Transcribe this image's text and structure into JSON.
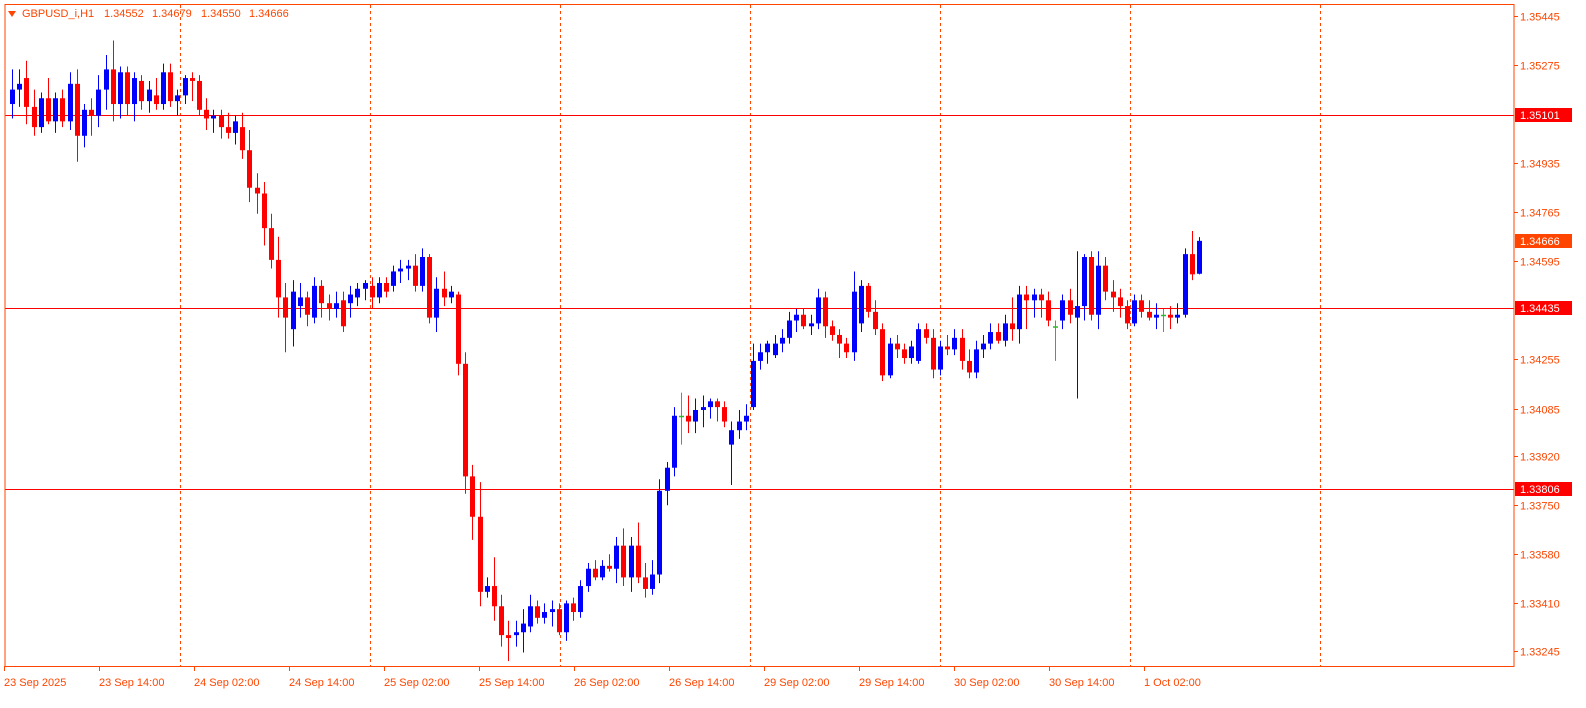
{
  "chart_data": {
    "type": "candlestick",
    "symbol_label": "GBPUSD_i,H1",
    "ohlc_readout": [
      "1.34552",
      "1.34679",
      "1.34550",
      "1.34666"
    ],
    "y_ticks": [
      "1.35445",
      "1.35275",
      "1.34935",
      "1.34765",
      "1.34595",
      "1.34255",
      "1.34085",
      "1.33920",
      "1.33750",
      "1.33580",
      "1.33410",
      "1.33245"
    ],
    "x_ticks": [
      "23 Sep 2025",
      "23 Sep 14:00",
      "24 Sep 02:00",
      "24 Sep 14:00",
      "25 Sep 02:00",
      "25 Sep 14:00",
      "26 Sep 02:00",
      "26 Sep 14:00",
      "29 Sep 02:00",
      "29 Sep 14:00",
      "30 Sep 02:00",
      "30 Sep 14:00",
      "1 Oct 02:00"
    ],
    "ylim": [
      1.3318,
      1.3548
    ],
    "grid": {
      "vertical": true,
      "horizontal": false,
      "style": "dashed"
    },
    "levels": [
      {
        "label": "1.35101",
        "price": 1.35101
      },
      {
        "label": "1.34435",
        "price": 1.34435
      },
      {
        "label": "1.33806",
        "price": 1.33806
      }
    ],
    "current_price": {
      "label": "1.34666",
      "price": 1.34666
    },
    "colors": {
      "bull": "#0000ff",
      "bear": "#ff0000",
      "doji": "#2eb82e",
      "line": "#ff0000",
      "grid": "#ff4500",
      "axis": "#ff4500",
      "text": "#ff4500"
    },
    "candles": [
      {
        "o": 1.3514,
        "h": 1.3526,
        "l": 1.3509,
        "c": 1.3519
      },
      {
        "o": 1.3519,
        "h": 1.3526,
        "l": 1.3513,
        "c": 1.3521
      },
      {
        "o": 1.3523,
        "h": 1.3529,
        "l": 1.3507,
        "c": 1.3513
      },
      {
        "o": 1.3513,
        "h": 1.3519,
        "l": 1.3503,
        "c": 1.3506
      },
      {
        "o": 1.3506,
        "h": 1.3518,
        "l": 1.3504,
        "c": 1.3516
      },
      {
        "o": 1.3516,
        "h": 1.3523,
        "l": 1.3507,
        "c": 1.3508
      },
      {
        "o": 1.3508,
        "h": 1.3518,
        "l": 1.3504,
        "c": 1.3516
      },
      {
        "o": 1.3516,
        "h": 1.3519,
        "l": 1.3506,
        "c": 1.3508
      },
      {
        "o": 1.3508,
        "h": 1.3525,
        "l": 1.3505,
        "c": 1.3521
      },
      {
        "o": 1.3521,
        "h": 1.3526,
        "l": 1.3494,
        "c": 1.3503
      },
      {
        "o": 1.3503,
        "h": 1.3514,
        "l": 1.3499,
        "c": 1.3512
      },
      {
        "o": 1.3512,
        "h": 1.3516,
        "l": 1.3503,
        "c": 1.351
      },
      {
        "o": 1.351,
        "h": 1.3524,
        "l": 1.3506,
        "c": 1.3519
      },
      {
        "o": 1.3519,
        "h": 1.3531,
        "l": 1.3512,
        "c": 1.3526
      },
      {
        "o": 1.3526,
        "h": 1.3536,
        "l": 1.3508,
        "c": 1.3514
      },
      {
        "o": 1.3514,
        "h": 1.3527,
        "l": 1.3509,
        "c": 1.3525
      },
      {
        "o": 1.3525,
        "h": 1.3527,
        "l": 1.351,
        "c": 1.3514
      },
      {
        "o": 1.3514,
        "h": 1.3525,
        "l": 1.3508,
        "c": 1.3523
      },
      {
        "o": 1.3522,
        "h": 1.3524,
        "l": 1.3512,
        "c": 1.3515
      },
      {
        "o": 1.3515,
        "h": 1.3522,
        "l": 1.3511,
        "c": 1.3519
      },
      {
        "o": 1.3517,
        "h": 1.3523,
        "l": 1.3512,
        "c": 1.3514
      },
      {
        "o": 1.3514,
        "h": 1.3528,
        "l": 1.3512,
        "c": 1.3525
      },
      {
        "o": 1.3525,
        "h": 1.3528,
        "l": 1.3513,
        "c": 1.3515
      },
      {
        "o": 1.3515,
        "h": 1.3519,
        "l": 1.351,
        "c": 1.3517
      },
      {
        "o": 1.3517,
        "h": 1.3524,
        "l": 1.3514,
        "c": 1.3523
      },
      {
        "o": 1.3523,
        "h": 1.3525,
        "l": 1.3515,
        "c": 1.3522
      },
      {
        "o": 1.3522,
        "h": 1.3524,
        "l": 1.351,
        "c": 1.3512
      },
      {
        "o": 1.3512,
        "h": 1.3516,
        "l": 1.3505,
        "c": 1.3509
      },
      {
        "o": 1.3509,
        "h": 1.3512,
        "l": 1.3504,
        "c": 1.351
      },
      {
        "o": 1.351,
        "h": 1.3512,
        "l": 1.3502,
        "c": 1.3506
      },
      {
        "o": 1.3506,
        "h": 1.3511,
        "l": 1.3502,
        "c": 1.3504
      },
      {
        "o": 1.3504,
        "h": 1.351,
        "l": 1.35,
        "c": 1.3508
      },
      {
        "o": 1.3506,
        "h": 1.3511,
        "l": 1.3495,
        "c": 1.3498
      },
      {
        "o": 1.3498,
        "h": 1.3505,
        "l": 1.348,
        "c": 1.3485
      },
      {
        "o": 1.3485,
        "h": 1.349,
        "l": 1.3476,
        "c": 1.3483
      },
      {
        "o": 1.3483,
        "h": 1.3487,
        "l": 1.3465,
        "c": 1.3471
      },
      {
        "o": 1.3471,
        "h": 1.3476,
        "l": 1.3457,
        "c": 1.346
      },
      {
        "o": 1.346,
        "h": 1.3468,
        "l": 1.344,
        "c": 1.3447
      },
      {
        "o": 1.3447,
        "h": 1.3452,
        "l": 1.3428,
        "c": 1.344
      },
      {
        "o": 1.3436,
        "h": 1.3453,
        "l": 1.343,
        "c": 1.3449
      },
      {
        "o": 1.3444,
        "h": 1.3452,
        "l": 1.344,
        "c": 1.3447
      },
      {
        "o": 1.3447,
        "h": 1.3449,
        "l": 1.3437,
        "c": 1.3441
      },
      {
        "o": 1.344,
        "h": 1.3454,
        "l": 1.3438,
        "c": 1.3451
      },
      {
        "o": 1.3451,
        "h": 1.3453,
        "l": 1.344,
        "c": 1.3445
      },
      {
        "o": 1.3445,
        "h": 1.3448,
        "l": 1.3439,
        "c": 1.3443
      },
      {
        "o": 1.3443,
        "h": 1.3449,
        "l": 1.344,
        "c": 1.3445
      },
      {
        "o": 1.3446,
        "h": 1.3449,
        "l": 1.3435,
        "c": 1.3437
      },
      {
        "o": 1.3445,
        "h": 1.3451,
        "l": 1.344,
        "c": 1.3448
      },
      {
        "o": 1.3447,
        "h": 1.3452,
        "l": 1.3444,
        "c": 1.345
      },
      {
        "o": 1.345,
        "h": 1.3453,
        "l": 1.3446,
        "c": 1.3452
      },
      {
        "o": 1.3451,
        "h": 1.3454,
        "l": 1.3443,
        "c": 1.3447
      },
      {
        "o": 1.3447,
        "h": 1.3454,
        "l": 1.3445,
        "c": 1.3452
      },
      {
        "o": 1.3452,
        "h": 1.3454,
        "l": 1.3447,
        "c": 1.3449
      },
      {
        "o": 1.3451,
        "h": 1.3458,
        "l": 1.3449,
        "c": 1.3456
      },
      {
        "o": 1.3456,
        "h": 1.346,
        "l": 1.3452,
        "c": 1.3457
      },
      {
        "o": 1.3457,
        "h": 1.346,
        "l": 1.3453,
        "c": 1.3458
      },
      {
        "o": 1.3458,
        "h": 1.3462,
        "l": 1.3449,
        "c": 1.3451
      },
      {
        "o": 1.3451,
        "h": 1.3464,
        "l": 1.3449,
        "c": 1.3461
      },
      {
        "o": 1.3461,
        "h": 1.3462,
        "l": 1.3438,
        "c": 1.344
      },
      {
        "o": 1.344,
        "h": 1.3454,
        "l": 1.3435,
        "c": 1.345
      },
      {
        "o": 1.345,
        "h": 1.3456,
        "l": 1.3444,
        "c": 1.3447
      },
      {
        "o": 1.3447,
        "h": 1.3451,
        "l": 1.3445,
        "c": 1.3449
      },
      {
        "o": 1.3448,
        "h": 1.3449,
        "l": 1.342,
        "c": 1.3424
      },
      {
        "o": 1.3424,
        "h": 1.3428,
        "l": 1.3379,
        "c": 1.3385
      },
      {
        "o": 1.3385,
        "h": 1.3389,
        "l": 1.3363,
        "c": 1.3371
      },
      {
        "o": 1.3371,
        "h": 1.3383,
        "l": 1.334,
        "c": 1.3345
      },
      {
        "o": 1.3345,
        "h": 1.335,
        "l": 1.3343,
        "c": 1.3347
      },
      {
        "o": 1.3347,
        "h": 1.3357,
        "l": 1.3335,
        "c": 1.334
      },
      {
        "o": 1.334,
        "h": 1.3344,
        "l": 1.3326,
        "c": 1.333
      },
      {
        "o": 1.333,
        "h": 1.3335,
        "l": 1.3321,
        "c": 1.3329
      },
      {
        "o": 1.333,
        "h": 1.3335,
        "l": 1.3326,
        "c": 1.3331
      },
      {
        "o": 1.3331,
        "h": 1.3339,
        "l": 1.3324,
        "c": 1.3334
      },
      {
        "o": 1.3333,
        "h": 1.3344,
        "l": 1.3331,
        "c": 1.334
      },
      {
        "o": 1.334,
        "h": 1.3342,
        "l": 1.3334,
        "c": 1.3336
      },
      {
        "o": 1.3336,
        "h": 1.3341,
        "l": 1.3334,
        "c": 1.3338
      },
      {
        "o": 1.3338,
        "h": 1.3342,
        "l": 1.3333,
        "c": 1.3339
      },
      {
        "o": 1.3339,
        "h": 1.3341,
        "l": 1.333,
        "c": 1.3331
      },
      {
        "o": 1.3331,
        "h": 1.3342,
        "l": 1.3328,
        "c": 1.3341
      },
      {
        "o": 1.3341,
        "h": 1.3343,
        "l": 1.3335,
        "c": 1.3338
      },
      {
        "o": 1.3338,
        "h": 1.3349,
        "l": 1.3336,
        "c": 1.3347
      },
      {
        "o": 1.3347,
        "h": 1.3355,
        "l": 1.3345,
        "c": 1.3353
      },
      {
        "o": 1.3353,
        "h": 1.3356,
        "l": 1.3349,
        "c": 1.335
      },
      {
        "o": 1.335,
        "h": 1.3356,
        "l": 1.3349,
        "c": 1.3354
      },
      {
        "o": 1.3354,
        "h": 1.3358,
        "l": 1.3352,
        "c": 1.3353
      },
      {
        "o": 1.3353,
        "h": 1.3364,
        "l": 1.3348,
        "c": 1.3361
      },
      {
        "o": 1.3361,
        "h": 1.3367,
        "l": 1.3347,
        "c": 1.335
      },
      {
        "o": 1.335,
        "h": 1.3364,
        "l": 1.3345,
        "c": 1.3361
      },
      {
        "o": 1.3361,
        "h": 1.3369,
        "l": 1.3348,
        "c": 1.335
      },
      {
        "o": 1.335,
        "h": 1.3355,
        "l": 1.3343,
        "c": 1.3346
      },
      {
        "o": 1.3346,
        "h": 1.3356,
        "l": 1.3344,
        "c": 1.3351
      },
      {
        "o": 1.3351,
        "h": 1.3384,
        "l": 1.3348,
        "c": 1.338
      },
      {
        "o": 1.338,
        "h": 1.339,
        "l": 1.3375,
        "c": 1.3388
      },
      {
        "o": 1.3388,
        "h": 1.3409,
        "l": 1.3385,
        "c": 1.3406
      },
      {
        "o": 1.3406,
        "h": 1.3414,
        "l": 1.3396,
        "c": 1.3406
      },
      {
        "o": 1.3406,
        "h": 1.3413,
        "l": 1.34,
        "c": 1.3404
      },
      {
        "o": 1.3404,
        "h": 1.3412,
        "l": 1.34,
        "c": 1.3408
      },
      {
        "o": 1.3408,
        "h": 1.3413,
        "l": 1.3402,
        "c": 1.3409
      },
      {
        "o": 1.3409,
        "h": 1.3412,
        "l": 1.3405,
        "c": 1.3411
      },
      {
        "o": 1.3411,
        "h": 1.3412,
        "l": 1.3404,
        "c": 1.3409
      },
      {
        "o": 1.3409,
        "h": 1.3411,
        "l": 1.3402,
        "c": 1.3404
      },
      {
        "o": 1.3396,
        "h": 1.3404,
        "l": 1.3382,
        "c": 1.3401
      },
      {
        "o": 1.3401,
        "h": 1.3408,
        "l": 1.3398,
        "c": 1.3404
      },
      {
        "o": 1.3404,
        "h": 1.341,
        "l": 1.3401,
        "c": 1.3406
      },
      {
        "o": 1.3409,
        "h": 1.3431,
        "l": 1.3408,
        "c": 1.3425
      },
      {
        "o": 1.3425,
        "h": 1.3431,
        "l": 1.3422,
        "c": 1.3428
      },
      {
        "o": 1.3428,
        "h": 1.3432,
        "l": 1.3424,
        "c": 1.3431
      },
      {
        "o": 1.3427,
        "h": 1.3434,
        "l": 1.3426,
        "c": 1.3431
      },
      {
        "o": 1.3431,
        "h": 1.3436,
        "l": 1.3428,
        "c": 1.3433
      },
      {
        "o": 1.3433,
        "h": 1.3442,
        "l": 1.3431,
        "c": 1.3439
      },
      {
        "o": 1.3439,
        "h": 1.3443,
        "l": 1.3435,
        "c": 1.3441
      },
      {
        "o": 1.3441,
        "h": 1.3443,
        "l": 1.3436,
        "c": 1.3437
      },
      {
        "o": 1.3437,
        "h": 1.3441,
        "l": 1.3434,
        "c": 1.3438
      },
      {
        "o": 1.3438,
        "h": 1.345,
        "l": 1.3436,
        "c": 1.3447
      },
      {
        "o": 1.3447,
        "h": 1.3449,
        "l": 1.3433,
        "c": 1.3437
      },
      {
        "o": 1.3437,
        "h": 1.3439,
        "l": 1.3432,
        "c": 1.3434
      },
      {
        "o": 1.3434,
        "h": 1.3436,
        "l": 1.3426,
        "c": 1.3431
      },
      {
        "o": 1.3431,
        "h": 1.3433,
        "l": 1.3426,
        "c": 1.3428
      },
      {
        "o": 1.3428,
        "h": 1.3456,
        "l": 1.3425,
        "c": 1.3449
      },
      {
        "o": 1.3438,
        "h": 1.3453,
        "l": 1.3435,
        "c": 1.3451
      },
      {
        "o": 1.3451,
        "h": 1.3452,
        "l": 1.344,
        "c": 1.3442
      },
      {
        "o": 1.3442,
        "h": 1.3446,
        "l": 1.3434,
        "c": 1.3436
      },
      {
        "o": 1.3436,
        "h": 1.3438,
        "l": 1.3418,
        "c": 1.342
      },
      {
        "o": 1.342,
        "h": 1.3433,
        "l": 1.3419,
        "c": 1.3431
      },
      {
        "o": 1.3431,
        "h": 1.3434,
        "l": 1.3426,
        "c": 1.3429
      },
      {
        "o": 1.3429,
        "h": 1.3431,
        "l": 1.3424,
        "c": 1.3426
      },
      {
        "o": 1.3426,
        "h": 1.3432,
        "l": 1.3424,
        "c": 1.343
      },
      {
        "o": 1.3425,
        "h": 1.3438,
        "l": 1.3424,
        "c": 1.3436
      },
      {
        "o": 1.3436,
        "h": 1.3438,
        "l": 1.3431,
        "c": 1.3433
      },
      {
        "o": 1.3433,
        "h": 1.3436,
        "l": 1.3419,
        "c": 1.3422
      },
      {
        "o": 1.3422,
        "h": 1.3432,
        "l": 1.342,
        "c": 1.343
      },
      {
        "o": 1.343,
        "h": 1.3434,
        "l": 1.3427,
        "c": 1.3429
      },
      {
        "o": 1.3429,
        "h": 1.3436,
        "l": 1.3427,
        "c": 1.3433
      },
      {
        "o": 1.3433,
        "h": 1.3436,
        "l": 1.3422,
        "c": 1.3425
      },
      {
        "o": 1.3425,
        "h": 1.3429,
        "l": 1.3419,
        "c": 1.3421
      },
      {
        "o": 1.3421,
        "h": 1.3432,
        "l": 1.3419,
        "c": 1.3429
      },
      {
        "o": 1.3429,
        "h": 1.3434,
        "l": 1.3426,
        "c": 1.3431
      },
      {
        "o": 1.3431,
        "h": 1.3438,
        "l": 1.3429,
        "c": 1.3435
      },
      {
        "o": 1.3435,
        "h": 1.3438,
        "l": 1.3431,
        "c": 1.3432
      },
      {
        "o": 1.3432,
        "h": 1.3441,
        "l": 1.343,
        "c": 1.3438
      },
      {
        "o": 1.3438,
        "h": 1.3447,
        "l": 1.3432,
        "c": 1.3436
      },
      {
        "o": 1.3436,
        "h": 1.3451,
        "l": 1.3431,
        "c": 1.3448
      },
      {
        "o": 1.3448,
        "h": 1.3451,
        "l": 1.3436,
        "c": 1.3446
      },
      {
        "o": 1.3446,
        "h": 1.345,
        "l": 1.344,
        "c": 1.3448
      },
      {
        "o": 1.3448,
        "h": 1.345,
        "l": 1.344,
        "c": 1.3446
      },
      {
        "o": 1.3446,
        "h": 1.3449,
        "l": 1.3437,
        "c": 1.3439
      },
      {
        "o": 1.3437,
        "h": 1.3439,
        "l": 1.3425,
        "c": 1.3437
      },
      {
        "o": 1.3439,
        "h": 1.3448,
        "l": 1.3436,
        "c": 1.3446
      },
      {
        "o": 1.3446,
        "h": 1.345,
        "l": 1.3438,
        "c": 1.3441
      },
      {
        "o": 1.344,
        "h": 1.3463,
        "l": 1.3412,
        "c": 1.3444
      },
      {
        "o": 1.3444,
        "h": 1.3462,
        "l": 1.3439,
        "c": 1.3461
      },
      {
        "o": 1.3461,
        "h": 1.3463,
        "l": 1.3439,
        "c": 1.3441
      },
      {
        "o": 1.3441,
        "h": 1.3463,
        "l": 1.3436,
        "c": 1.3458
      },
      {
        "o": 1.3458,
        "h": 1.3461,
        "l": 1.3446,
        "c": 1.3449
      },
      {
        "o": 1.3449,
        "h": 1.3453,
        "l": 1.3442,
        "c": 1.3447
      },
      {
        "o": 1.3447,
        "h": 1.345,
        "l": 1.344,
        "c": 1.3444
      },
      {
        "o": 1.3444,
        "h": 1.3446,
        "l": 1.3436,
        "c": 1.3438
      },
      {
        "o": 1.3438,
        "h": 1.3448,
        "l": 1.3437,
        "c": 1.3446
      },
      {
        "o": 1.3446,
        "h": 1.3448,
        "l": 1.344,
        "c": 1.3442
      },
      {
        "o": 1.3442,
        "h": 1.3446,
        "l": 1.3439,
        "c": 1.344
      },
      {
        "o": 1.344,
        "h": 1.3445,
        "l": 1.3436,
        "c": 1.3441
      },
      {
        "o": 1.3441,
        "h": 1.3443,
        "l": 1.3435,
        "c": 1.3441
      },
      {
        "o": 1.3441,
        "h": 1.3444,
        "l": 1.3436,
        "c": 1.344
      },
      {
        "o": 1.344,
        "h": 1.3445,
        "l": 1.3438,
        "c": 1.3441
      },
      {
        "o": 1.3441,
        "h": 1.3464,
        "l": 1.344,
        "c": 1.3462
      },
      {
        "o": 1.3462,
        "h": 1.347,
        "l": 1.3453,
        "c": 1.3455
      },
      {
        "o": 1.34552,
        "h": 1.34679,
        "l": 1.3455,
        "c": 1.34666
      }
    ]
  }
}
